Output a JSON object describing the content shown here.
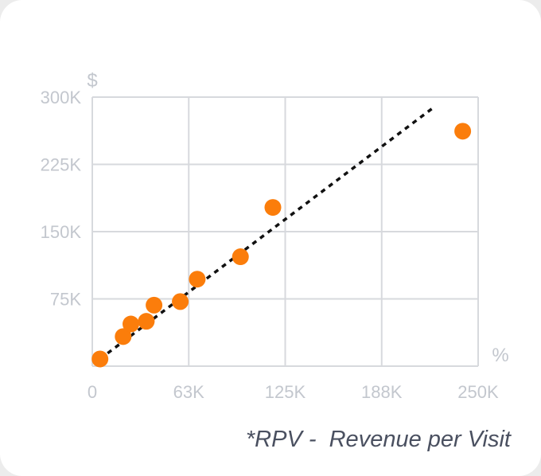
{
  "chart_data": {
    "type": "scatter",
    "x_unit_label": "%",
    "y_unit_label": "$",
    "xlim": [
      0,
      250000
    ],
    "ylim": [
      0,
      300000
    ],
    "x_ticks": [
      "0",
      "63K",
      "125K",
      "188K",
      "250K"
    ],
    "y_ticks": [
      "75K",
      "150K",
      "225K",
      "300K"
    ],
    "x_tick_values": [
      0,
      62500,
      125000,
      187500,
      250000
    ],
    "y_tick_values": [
      0,
      75000,
      150000,
      225000,
      300000
    ],
    "grid": true,
    "points": [
      {
        "x": 5000,
        "y": 8000
      },
      {
        "x": 20000,
        "y": 33000
      },
      {
        "x": 25000,
        "y": 47000
      },
      {
        "x": 35000,
        "y": 50000
      },
      {
        "x": 40000,
        "y": 68000
      },
      {
        "x": 57000,
        "y": 72000
      },
      {
        "x": 68000,
        "y": 97000
      },
      {
        "x": 96000,
        "y": 122000
      },
      {
        "x": 117000,
        "y": 177000
      },
      {
        "x": 240000,
        "y": 262000
      }
    ],
    "trendline": {
      "style": "dotted",
      "from": {
        "x": 5000,
        "y": 8000
      },
      "to": {
        "x": 220000,
        "y": 287000
      }
    },
    "colors": {
      "points": "#fb7d0b",
      "trendline": "#111111",
      "grid": "#d7d9dd",
      "ticks": "#c3c7ce"
    }
  },
  "footnote": "*RPV -  Revenue per Visit"
}
